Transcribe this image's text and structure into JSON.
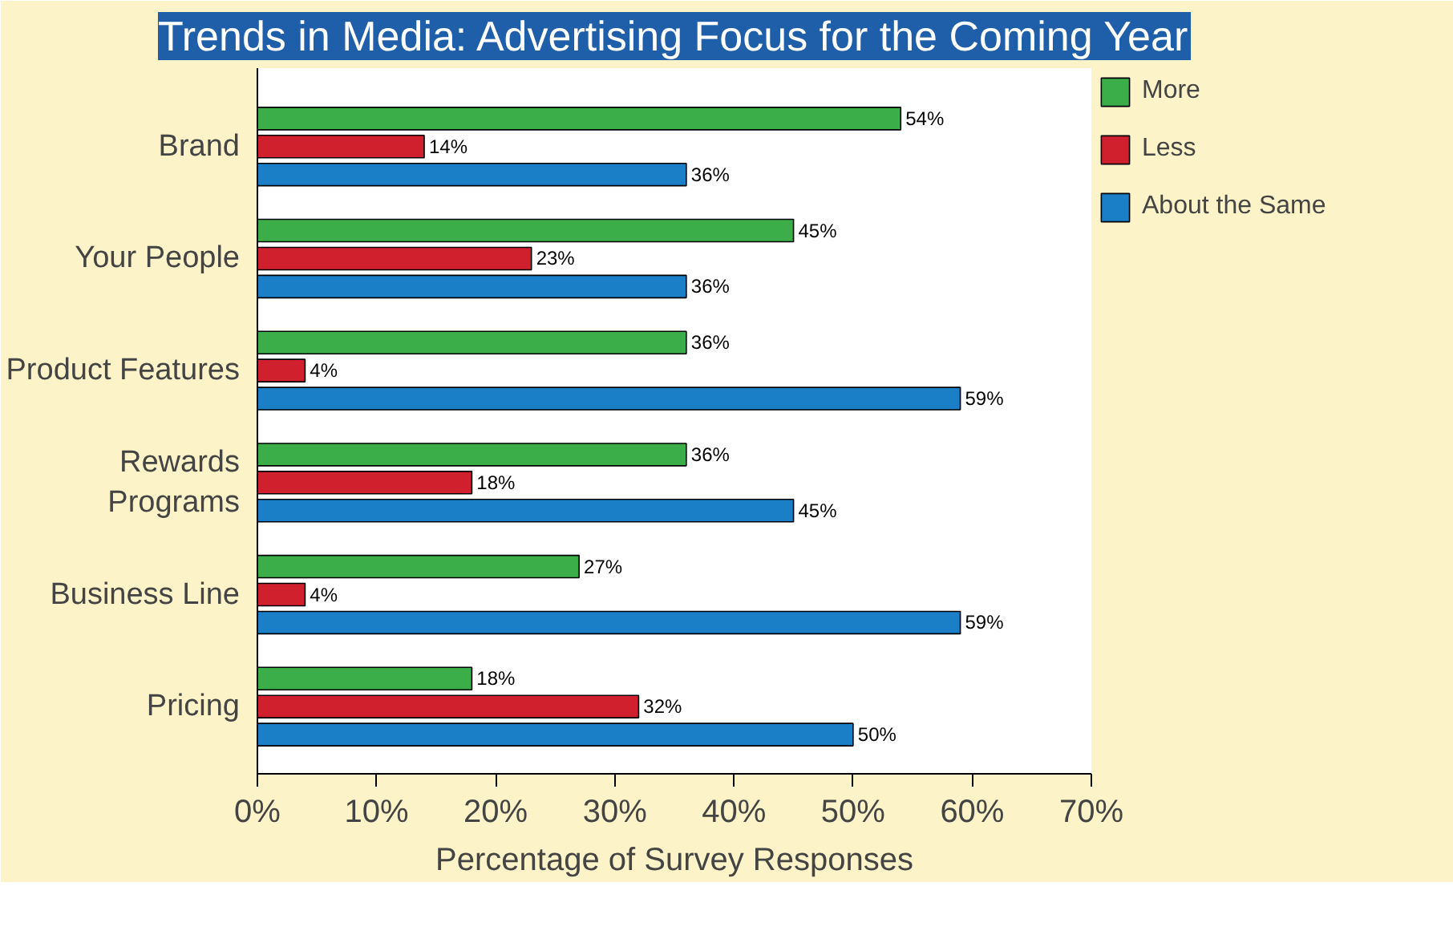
{
  "chart_data": {
    "type": "bar",
    "orientation": "horizontal",
    "title": "Trends in Media: Advertising Focus for the Coming Year",
    "xlabel": "Percentage of Survey Responses",
    "categories": [
      "Brand",
      "Your People",
      "Product Features",
      "Rewards\nPrograms",
      "Business Line",
      "Pricing"
    ],
    "series": [
      {
        "name": "More",
        "color": "#3cae49",
        "values": [
          54,
          45,
          36,
          36,
          27,
          18
        ],
        "value_labels": [
          "54%",
          "45%",
          "36%",
          "36%",
          "27%",
          "18%"
        ]
      },
      {
        "name": "Less",
        "color": "#d0202e",
        "values": [
          14,
          23,
          4,
          18,
          4,
          32
        ],
        "value_labels": [
          "14%",
          "23%",
          "4%",
          "18%",
          "4%",
          "32%"
        ]
      },
      {
        "name": "About the Same",
        "color": "#1a7fc7",
        "values": [
          36,
          36,
          59,
          45,
          59,
          50
        ],
        "value_labels": [
          "36%",
          "36%",
          "59%",
          "45%",
          "59%",
          "50%"
        ]
      }
    ],
    "xlim": [
      0,
      70
    ],
    "xticks": [
      {
        "value": 0,
        "label": "0%"
      },
      {
        "value": 10,
        "label": "10%"
      },
      {
        "value": 20,
        "label": "20%"
      },
      {
        "value": 30,
        "label": "30%"
      },
      {
        "value": 40,
        "label": "40%"
      },
      {
        "value": 50,
        "label": "50%"
      },
      {
        "value": 60,
        "label": "60%"
      },
      {
        "value": 70,
        "label": "70%"
      }
    ],
    "grid": false,
    "legend": "right"
  }
}
